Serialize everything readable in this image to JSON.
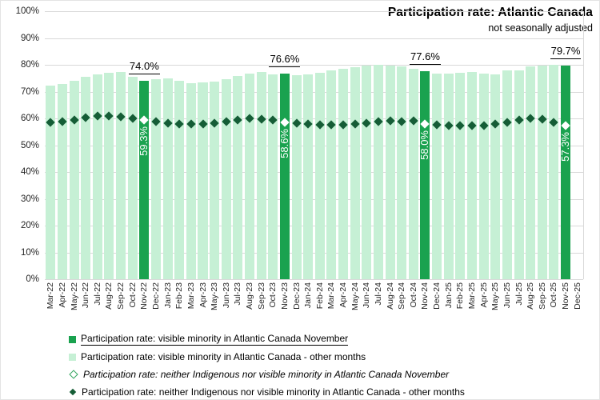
{
  "header": {
    "title": "Participation rate: Atlantic Canada",
    "subtitle": "not seasonally adjusted"
  },
  "chart_data": {
    "type": "bar",
    "title": "Participation rate: Atlantic Canada",
    "subtitle": "not seasonally adjusted",
    "ylim": [
      0,
      100
    ],
    "grid": true,
    "legend_position": "bottom",
    "y_ticks": [
      "0%",
      "10%",
      "20%",
      "30%",
      "40%",
      "50%",
      "60%",
      "70%",
      "80%",
      "90%",
      "100%"
    ],
    "categories": [
      "Mar-22",
      "Apr-22",
      "May-22",
      "Jun-22",
      "Jul-22",
      "Aug-22",
      "Sep-22",
      "Oct-22",
      "Nov-22",
      "Dec-22",
      "Jan-23",
      "Feb-23",
      "Mar-23",
      "Apr-23",
      "May-23",
      "Jun-23",
      "Jul-23",
      "Aug-23",
      "Sep-23",
      "Oct-23",
      "Nov-23",
      "Dec-23",
      "Jan-24",
      "Feb-24",
      "Mar-24",
      "Apr-24",
      "May-24",
      "Jun-24",
      "Jul-24",
      "Aug-24",
      "Sep-24",
      "Oct-24",
      "Nov-24",
      "Dec-24",
      "Jan-25",
      "Feb-25",
      "Mar-25",
      "Apr-25",
      "May-25",
      "Jun-25",
      "Jul-25",
      "Aug-25",
      "Sep-25",
      "Oct-25",
      "Nov-25",
      "Dec-25"
    ],
    "series": [
      {
        "name": "Participation rate: visible minority in Atlantic Canada",
        "marker": "bar",
        "values": [
          72.2,
          72.8,
          74.0,
          75.6,
          76.5,
          77.0,
          77.2,
          75.6,
          74.0,
          74.6,
          74.9,
          73.9,
          73.1,
          73.3,
          73.6,
          74.7,
          75.9,
          76.8,
          77.2,
          76.4,
          76.6,
          76.1,
          76.4,
          77.1,
          77.8,
          78.6,
          79.1,
          79.6,
          79.9,
          79.8,
          79.4,
          78.4,
          77.6,
          76.8,
          76.8,
          77.0,
          77.3,
          76.6,
          76.4,
          77.8,
          77.9,
          79.4,
          79.8,
          79.9,
          79.7,
          null
        ]
      },
      {
        "name": "Participation rate: neither Indigenous nor visible minority in Atlantic Canada",
        "marker": "diamond",
        "values": [
          58.4,
          58.9,
          59.5,
          60.2,
          60.8,
          60.9,
          60.6,
          60.0,
          59.3,
          58.7,
          58.2,
          57.9,
          57.8,
          58.0,
          58.3,
          58.8,
          59.5,
          60.1,
          59.8,
          59.3,
          58.6,
          58.1,
          57.8,
          57.7,
          57.6,
          57.6,
          57.9,
          58.3,
          58.8,
          59.2,
          58.9,
          59.0,
          58.0,
          57.6,
          57.3,
          57.2,
          57.3,
          57.4,
          57.9,
          58.6,
          59.4,
          60.0,
          59.7,
          58.4,
          57.3,
          null
        ]
      }
    ],
    "november_highlights": [
      {
        "category": "Nov-22",
        "bar_label": "74.0%",
        "diamond_label": "59.3%"
      },
      {
        "category": "Nov-23",
        "bar_label": "76.6%",
        "diamond_label": "58.6%"
      },
      {
        "category": "Nov-24",
        "bar_label": "77.6%",
        "diamond_label": "58.0%"
      },
      {
        "category": "Nov-25",
        "bar_label": "79.7%",
        "diamond_label": "57.3%"
      }
    ],
    "colors": {
      "bar_november": "#1AA24F",
      "bar_other": "#C6F0D5",
      "diamond_other": "#155D36",
      "diamond_november": "#FFFFFF",
      "gridline": "#D9D9D9",
      "axis_text": "#262626"
    }
  },
  "legend": {
    "items": [
      {
        "label": "Participation rate: visible minority in Atlantic Canada November",
        "marker": "square-dark",
        "underline": true,
        "italic": false
      },
      {
        "label": "Participation rate: visible minority in Atlantic Canada - other months",
        "marker": "square-light",
        "underline": false,
        "italic": false
      },
      {
        "label": "Participation rate: neither Indigenous nor visible minority in Atlantic Canada November",
        "marker": "diamond-hollow",
        "underline": false,
        "italic": true
      },
      {
        "label": "Participation rate: neither Indigenous nor visible minority in Atlantic Canada - other months",
        "marker": "diamond-filled",
        "underline": false,
        "italic": false
      }
    ]
  }
}
